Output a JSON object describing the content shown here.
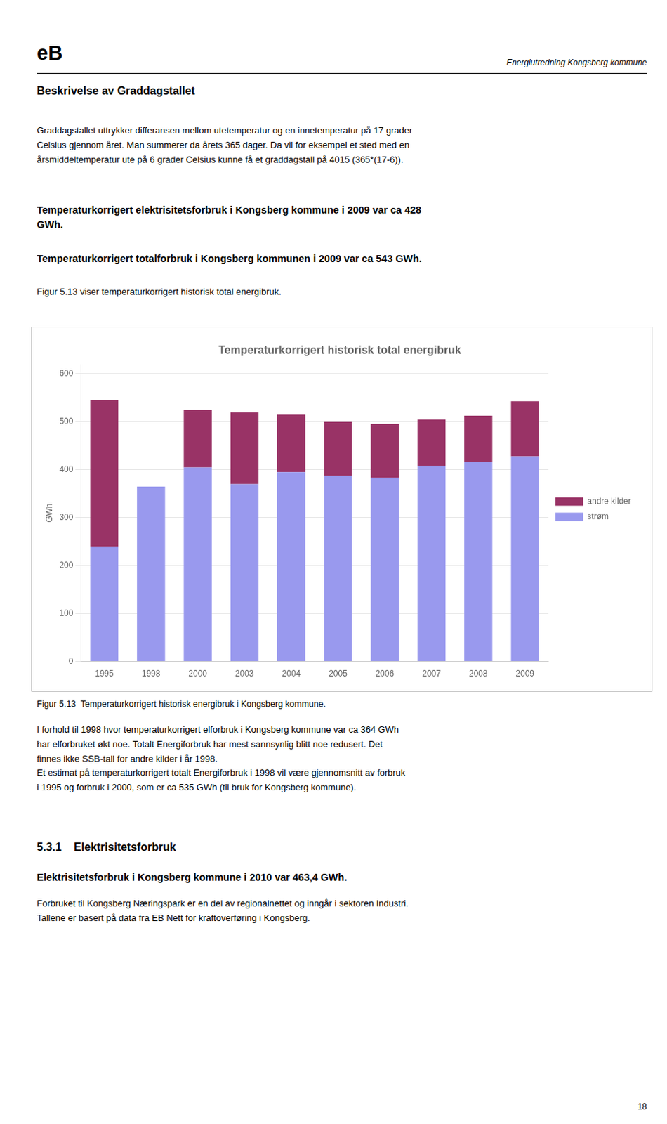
{
  "page": {
    "logo": "eB",
    "header_right": "Energiutredning Kongsberg kommune",
    "heading1": "Beskrivelse av Graddagstallet",
    "para1": "Graddagstallet uttrykker differansen mellom utetemperatur og en innetemperatur på 17 grader\nCelsius gjennom året. Man summerer da årets 365 dager. Da vil for eksempel et sted med en\nårsmiddeltemperatur ute på 6 grader Celsius kunne få et graddagstall på 4015 (365*(17-6)).",
    "bold1": "Temperaturkorrigert elektrisitetsforbruk i Kongsberg kommune i 2009 var ca 428\nGWh.",
    "bold2": "Temperaturkorrigert totalforbruk i Kongsberg kommunen i 2009 var ca 543 GWh.",
    "para2": "Figur 5.13 viser temperaturkorrigert historisk total energibruk.",
    "fig_caption": "Figur 5.13  Temperaturkorrigert historisk energibruk i Kongsberg kommune.",
    "para3": "I forhold til 1998 hvor temperaturkorrigert elforbruk i Kongsberg kommune var ca 364 GWh\nhar elforbruket økt noe. Totalt Energiforbruk har mest sannsynlig blitt noe redusert. Det\nfinnes ikke SSB-tall for andre kilder i år 1998.\nEt estimat på temperaturkorrigert totalt Energiforbruk i 1998 vil være gjennomsnitt av forbruk\ni 1995 og forbruk i 2000, som er ca 535 GWh (til bruk for Kongsberg kommune).",
    "heading2": "5.3.1    Elektrisitetsforbruk",
    "bold3": "Elektrisitetsforbruk i Kongsberg kommune i 2010 var 463,4 GWh.",
    "para4": "Forbruket til Kongsberg Næringspark er en del av regionalnettet og inngår i sektoren Industri.\nTallene er basert på data fra EB Nett for kraftoverføring i Kongsberg.",
    "page_number": "18"
  },
  "chart_data": {
    "type": "bar",
    "title": "Temperaturkorrigert historisk total energibruk",
    "ylabel": "GWh",
    "categories": [
      "1995",
      "1998",
      "2000",
      "2003",
      "2004",
      "2005",
      "2006",
      "2007",
      "2008",
      "2009"
    ],
    "series": [
      {
        "name": "strøm",
        "color": "#9999EE",
        "values": [
          240,
          365,
          405,
          370,
          395,
          387,
          383,
          408,
          417,
          428
        ]
      },
      {
        "name": "andre kilder",
        "color": "#993366",
        "values": [
          305,
          0,
          120,
          150,
          120,
          113,
          113,
          97,
          96,
          115
        ]
      }
    ],
    "stacked": true,
    "ylim": [
      0,
      620
    ],
    "yticks": [
      0,
      100,
      200,
      300,
      400,
      500,
      600
    ],
    "grid": true,
    "legend": "right"
  }
}
